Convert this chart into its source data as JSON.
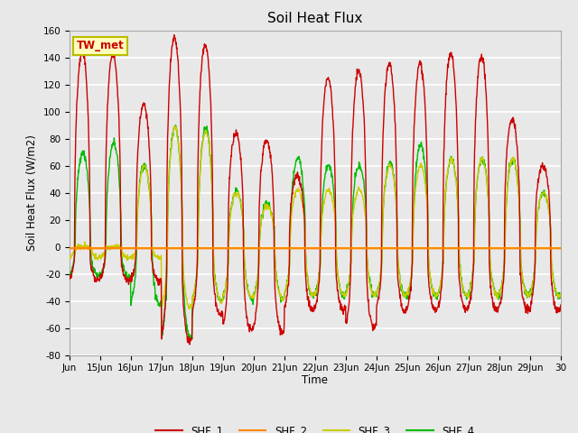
{
  "title": "Soil Heat Flux",
  "ylabel": "Soil Heat Flux (W/m2)",
  "xlabel": "Time",
  "ylim": [
    -80,
    160
  ],
  "xlim": [
    0,
    16
  ],
  "background_color": "#e8e8e8",
  "plot_bg_color": "#e8e8e8",
  "grid_color": "white",
  "series_colors": {
    "SHF_1": "#cc0000",
    "SHF_2": "#ff8800",
    "SHF_3": "#cccc00",
    "SHF_4": "#00bb00"
  },
  "legend_label": "TW_met",
  "xtick_labels": [
    "Jun",
    "15Jun",
    "16Jun",
    "17Jun",
    "18Jun",
    "19Jun",
    "20Jun",
    "21Jun",
    "22Jun",
    "23Jun",
    "24Jun",
    "25Jun",
    "26Jun",
    "27Jun",
    "28Jun",
    "29Jun",
    "30"
  ],
  "xtick_positions": [
    0,
    1,
    2,
    3,
    4,
    5,
    6,
    7,
    8,
    9,
    10,
    11,
    12,
    13,
    14,
    15,
    16
  ],
  "ytick_positions": [
    -80,
    -60,
    -40,
    -20,
    0,
    20,
    40,
    60,
    80,
    100,
    120,
    140,
    160
  ]
}
